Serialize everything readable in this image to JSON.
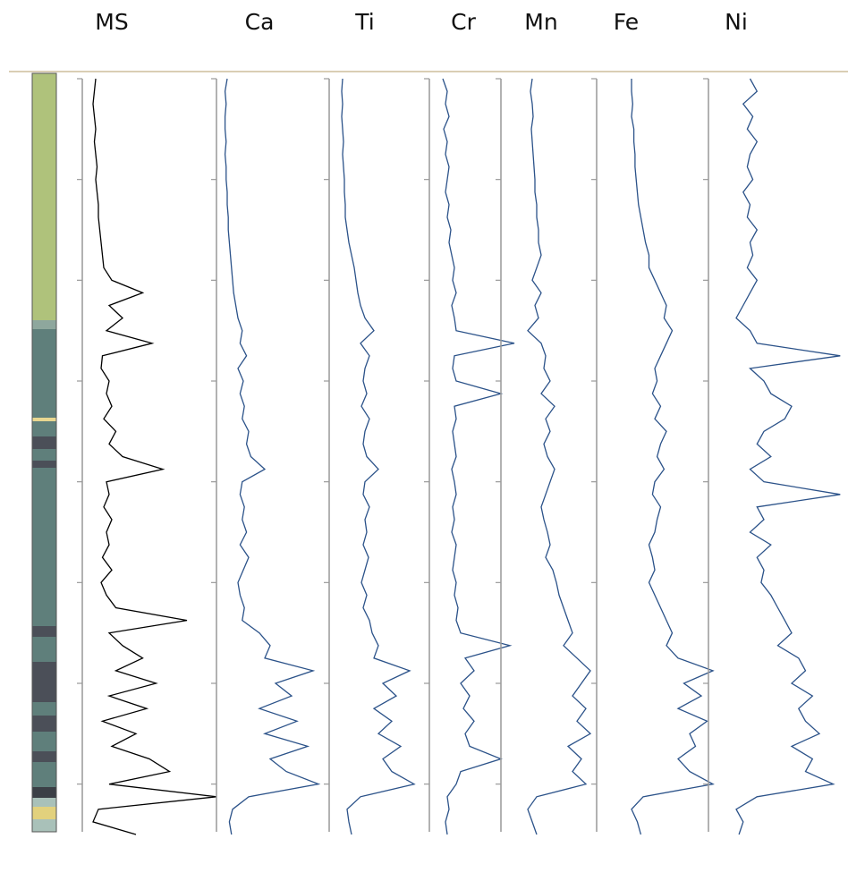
{
  "chart_data": {
    "type": "line",
    "orientation": "vertical",
    "ylim": [
      0,
      7.5
    ],
    "yticks": [
      0,
      1,
      2,
      3,
      4,
      5,
      6,
      7
    ],
    "depth": [
      0,
      0.125,
      0.25,
      0.375,
      0.5,
      0.625,
      0.75,
      0.875,
      1,
      1.125,
      1.25,
      1.375,
      1.5,
      1.625,
      1.75,
      1.875,
      2,
      2.125,
      2.25,
      2.375,
      2.5,
      2.625,
      2.75,
      2.875,
      3,
      3.125,
      3.25,
      3.375,
      3.5,
      3.625,
      3.75,
      3.875,
      4,
      4.125,
      4.25,
      4.375,
      4.5,
      4.625,
      4.75,
      4.875,
      5,
      5.125,
      5.25,
      5.375,
      5.5,
      5.625,
      5.75,
      5.875,
      6,
      6.125,
      6.25,
      6.375,
      6.5,
      6.625,
      6.75,
      6.875,
      7,
      7.125,
      7.25,
      7.375,
      7.5
    ],
    "series": [
      {
        "name": "MS",
        "color": "#000000",
        "xlim": [
          0,
          100
        ],
        "values": [
          10,
          9,
          8,
          9,
          10,
          9,
          10,
          11,
          10,
          11,
          12,
          12,
          13,
          14,
          15,
          16,
          22,
          45,
          20,
          30,
          18,
          52,
          15,
          14,
          20,
          18,
          22,
          16,
          25,
          20,
          30,
          60,
          18,
          20,
          16,
          22,
          18,
          20,
          15,
          22,
          14,
          18,
          25,
          78,
          20,
          30,
          45,
          25,
          55,
          20,
          48,
          15,
          40,
          22,
          50,
          65,
          20,
          100,
          12,
          8,
          40
        ]
      },
      {
        "name": "Ca",
        "color": "#2b5289",
        "xlim": [
          0,
          100
        ],
        "values": [
          10,
          8,
          9,
          8,
          8,
          9,
          8,
          9,
          9,
          10,
          10,
          11,
          11,
          12,
          13,
          14,
          15,
          16,
          18,
          20,
          24,
          22,
          28,
          20,
          25,
          22,
          26,
          24,
          30,
          28,
          32,
          45,
          24,
          22,
          26,
          24,
          28,
          22,
          30,
          25,
          20,
          22,
          26,
          24,
          40,
          50,
          45,
          90,
          55,
          70,
          40,
          75,
          45,
          85,
          50,
          65,
          95,
          30,
          15,
          12,
          14
        ]
      },
      {
        "name": "Ti",
        "color": "#2b5289",
        "xlim": [
          0,
          100
        ],
        "values": [
          15,
          14,
          15,
          14,
          15,
          16,
          15,
          16,
          17,
          17,
          18,
          18,
          20,
          22,
          25,
          28,
          30,
          32,
          35,
          40,
          50,
          35,
          45,
          40,
          38,
          42,
          36,
          45,
          40,
          38,
          42,
          55,
          40,
          38,
          45,
          40,
          42,
          38,
          44,
          40,
          36,
          42,
          38,
          45,
          48,
          55,
          50,
          90,
          60,
          75,
          50,
          70,
          55,
          80,
          60,
          70,
          95,
          35,
          20,
          22,
          25
        ]
      },
      {
        "name": "Cr",
        "color": "#2b5289",
        "xlim": [
          0,
          100
        ],
        "values": [
          15,
          20,
          18,
          22,
          16,
          20,
          18,
          22,
          20,
          18,
          22,
          20,
          24,
          22,
          25,
          28,
          26,
          30,
          25,
          28,
          30,
          95,
          28,
          26,
          30,
          80,
          28,
          30,
          26,
          28,
          30,
          25,
          28,
          30,
          26,
          28,
          25,
          30,
          28,
          26,
          30,
          28,
          32,
          30,
          35,
          90,
          40,
          50,
          35,
          45,
          38,
          50,
          40,
          45,
          80,
          35,
          30,
          20,
          22,
          18,
          20
        ]
      },
      {
        "name": "Mn",
        "color": "#2b5289",
        "xlim": [
          0,
          100
        ],
        "values": [
          35,
          33,
          35,
          36,
          34,
          35,
          36,
          37,
          38,
          38,
          40,
          40,
          42,
          42,
          45,
          40,
          35,
          45,
          38,
          42,
          30,
          45,
          50,
          48,
          55,
          45,
          60,
          50,
          55,
          48,
          52,
          60,
          55,
          50,
          45,
          48,
          52,
          55,
          50,
          58,
          62,
          65,
          70,
          75,
          80,
          70,
          85,
          100,
          90,
          80,
          95,
          85,
          100,
          75,
          90,
          80,
          95,
          40,
          30,
          35,
          40
        ]
      },
      {
        "name": "Fe",
        "color": "#2b5289",
        "xlim": [
          0,
          100
        ],
        "values": [
          30,
          30,
          31,
          30,
          32,
          32,
          33,
          33,
          34,
          35,
          36,
          38,
          40,
          42,
          45,
          45,
          50,
          55,
          60,
          58,
          65,
          60,
          55,
          50,
          52,
          48,
          55,
          50,
          60,
          55,
          52,
          58,
          50,
          48,
          55,
          52,
          50,
          45,
          48,
          50,
          45,
          50,
          55,
          60,
          65,
          60,
          70,
          100,
          75,
          90,
          70,
          95,
          80,
          85,
          70,
          80,
          100,
          40,
          30,
          35,
          38
        ]
      },
      {
        "name": "Ni",
        "color": "#2b5289",
        "xlim": [
          0,
          100
        ],
        "values": [
          30,
          35,
          25,
          32,
          28,
          35,
          30,
          28,
          32,
          25,
          30,
          28,
          35,
          30,
          32,
          28,
          35,
          30,
          25,
          20,
          30,
          35,
          95,
          30,
          40,
          45,
          60,
          55,
          40,
          35,
          45,
          30,
          40,
          95,
          35,
          40,
          30,
          45,
          35,
          40,
          38,
          45,
          50,
          55,
          60,
          50,
          65,
          70,
          60,
          75,
          65,
          70,
          80,
          60,
          75,
          70,
          90,
          35,
          20,
          25,
          22
        ]
      }
    ]
  }
}
